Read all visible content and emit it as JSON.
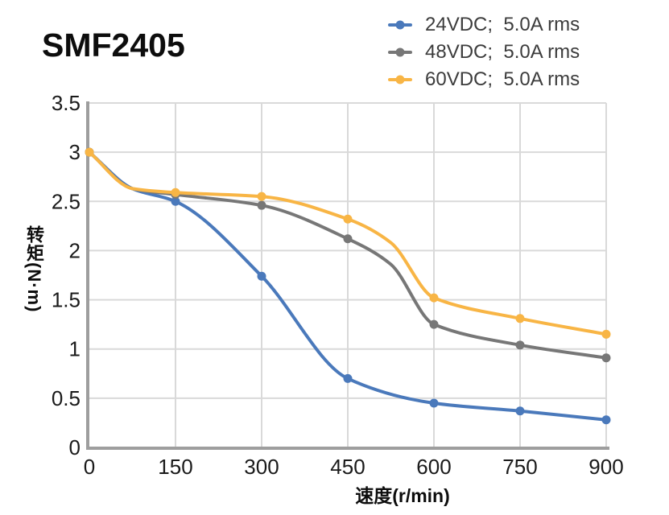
{
  "title": "SMF2405",
  "legend": {
    "position": "top-right",
    "items": [
      {
        "label": "24VDC;  5.0A rms",
        "color": "#4a79bb"
      },
      {
        "label": "48VDC;  5.0A rms",
        "color": "#777777"
      },
      {
        "label": "60VDC;  5.0A rms",
        "color": "#f8b545"
      }
    ]
  },
  "chart_data": {
    "type": "line",
    "title": "SMF2405",
    "xlabel": "速度(r/min)",
    "ylabel": "转矩(N·m)",
    "xlim": [
      0,
      900
    ],
    "ylim": [
      0,
      3.5
    ],
    "x_ticks": [
      0,
      150,
      300,
      450,
      600,
      750,
      900
    ],
    "y_ticks": [
      0,
      0.5,
      1,
      1.5,
      2,
      2.5,
      3,
      3.5
    ],
    "grid": true,
    "legend_position": "top-right",
    "categories": [
      0,
      150,
      300,
      450,
      600,
      750,
      900
    ],
    "series": [
      {
        "name": "24VDC;  5.0A rms",
        "color": "#4a79bb",
        "values": [
          3.0,
          2.5,
          1.74,
          0.7,
          0.45,
          0.37,
          0.28
        ],
        "curve_x": [
          0,
          75,
          150,
          300,
          450,
          600,
          750,
          900
        ],
        "curve_y": [
          3.0,
          2.63,
          2.5,
          1.74,
          0.7,
          0.45,
          0.37,
          0.28
        ]
      },
      {
        "name": "48VDC;  5.0A rms",
        "color": "#777777",
        "values": [
          3.0,
          2.57,
          2.46,
          2.12,
          1.25,
          1.04,
          0.91
        ],
        "curve_x": [
          0,
          75,
          150,
          300,
          450,
          525,
          600,
          750,
          900
        ],
        "curve_y": [
          3.0,
          2.63,
          2.57,
          2.46,
          2.12,
          1.86,
          1.25,
          1.04,
          0.91
        ]
      },
      {
        "name": "60VDC;  5.0A rms",
        "color": "#f8b545",
        "values": [
          3.0,
          2.59,
          2.55,
          2.32,
          1.52,
          1.31,
          1.15
        ],
        "curve_x": [
          0,
          75,
          150,
          300,
          450,
          525,
          600,
          750,
          900
        ],
        "curve_y": [
          3.0,
          2.63,
          2.59,
          2.55,
          2.32,
          2.08,
          1.52,
          1.31,
          1.15
        ]
      }
    ],
    "style": {
      "axis_color": "#9e9e9e",
      "grid_color": "#d9d9d9",
      "tick_label_color": "#1a1a1a"
    }
  }
}
